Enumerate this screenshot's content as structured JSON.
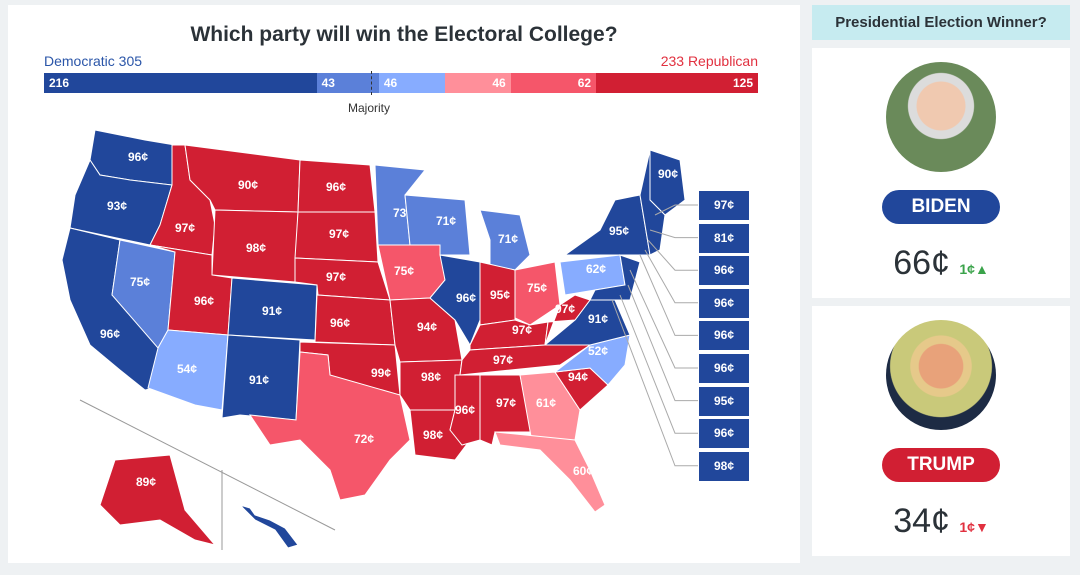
{
  "title": "Which party will win the Electoral College?",
  "dem_label": "Democratic 305",
  "rep_label": "233 Republican",
  "majority": "Majority",
  "bar": [
    {
      "v": "216",
      "n": 216,
      "c": "#21479b"
    },
    {
      "v": "43",
      "n": 43,
      "c": "#5b80d9"
    },
    {
      "v": "46",
      "n": 46,
      "c": "#87acff",
      "align": "left"
    },
    {
      "v": "46",
      "n": 46,
      "c": "#ff8f9a",
      "align": "right"
    },
    {
      "v": "62",
      "n": 62,
      "c": "#f5566a",
      "align": "right"
    },
    {
      "v": "125",
      "n": 125,
      "c": "#d11f33",
      "align": "right"
    }
  ],
  "colors": {
    "D3": "#21479b",
    "D2": "#5b80d9",
    "D1": "#87acff",
    "R1": "#ff8f9a",
    "R2": "#f5566a",
    "R3": "#d11f33"
  },
  "states": [
    {
      "s": "WA",
      "p": "96¢",
      "c": "D3"
    },
    {
      "s": "OR",
      "p": "93¢",
      "c": "D3"
    },
    {
      "s": "CA",
      "p": "96¢",
      "c": "D3"
    },
    {
      "s": "NV",
      "p": "75¢",
      "c": "D2"
    },
    {
      "s": "ID",
      "p": "97¢",
      "c": "R3"
    },
    {
      "s": "MT",
      "p": "90¢",
      "c": "R3"
    },
    {
      "s": "WY",
      "p": "98¢",
      "c": "R3"
    },
    {
      "s": "UT",
      "p": "96¢",
      "c": "R3"
    },
    {
      "s": "AZ",
      "p": "54¢",
      "c": "D1"
    },
    {
      "s": "CO",
      "p": "91¢",
      "c": "D3"
    },
    {
      "s": "NM",
      "p": "91¢",
      "c": "D3"
    },
    {
      "s": "ND",
      "p": "96¢",
      "c": "R3"
    },
    {
      "s": "SD",
      "p": "97¢",
      "c": "R3"
    },
    {
      "s": "NE",
      "p": "97¢",
      "c": "R3"
    },
    {
      "s": "KS",
      "p": "96¢",
      "c": "R3"
    },
    {
      "s": "OK",
      "p": "99¢",
      "c": "R3"
    },
    {
      "s": "TX",
      "p": "72¢",
      "c": "R2"
    },
    {
      "s": "MN",
      "p": "73¢",
      "c": "D2"
    },
    {
      "s": "IA",
      "p": "75¢",
      "c": "R2"
    },
    {
      "s": "MO",
      "p": "94¢",
      "c": "R3"
    },
    {
      "s": "AR",
      "p": "98¢",
      "c": "R3"
    },
    {
      "s": "LA",
      "p": "98¢",
      "c": "R3"
    },
    {
      "s": "WI",
      "p": "71¢",
      "c": "D2"
    },
    {
      "s": "IL",
      "p": "96¢",
      "c": "D3"
    },
    {
      "s": "MI",
      "p": "71¢",
      "c": "D2"
    },
    {
      "s": "IN",
      "p": "95¢",
      "c": "R3"
    },
    {
      "s": "OH",
      "p": "75¢",
      "c": "R2"
    },
    {
      "s": "KY",
      "p": "97¢",
      "c": "R3"
    },
    {
      "s": "TN",
      "p": "97¢",
      "c": "R3"
    },
    {
      "s": "MS",
      "p": "96¢",
      "c": "R3"
    },
    {
      "s": "AL",
      "p": "97¢",
      "c": "R3"
    },
    {
      "s": "GA",
      "p": "61¢",
      "c": "R1"
    },
    {
      "s": "FL",
      "p": "60¢",
      "c": "R1"
    },
    {
      "s": "SC",
      "p": "94¢",
      "c": "R3"
    },
    {
      "s": "NC",
      "p": "52¢",
      "c": "D1"
    },
    {
      "s": "VA",
      "p": "91¢",
      "c": "D3"
    },
    {
      "s": "WV",
      "p": "97¢",
      "c": "R3"
    },
    {
      "s": "PA",
      "p": "62¢",
      "c": "D1"
    },
    {
      "s": "NY",
      "p": "95¢",
      "c": "D3"
    },
    {
      "s": "ME",
      "p": "90¢",
      "c": "D3"
    },
    {
      "s": "AK",
      "p": "89¢",
      "c": "R3"
    },
    {
      "s": "HI",
      "p": "",
      "c": "D3"
    },
    {
      "s": "NE2",
      "p": "",
      "c": "D3"
    },
    {
      "s": "MID",
      "p": "",
      "c": "D3"
    }
  ],
  "small_states": [
    "97¢",
    "81¢",
    "96¢",
    "96¢",
    "96¢",
    "96¢",
    "95¢",
    "96¢",
    "98¢"
  ],
  "sidebar": {
    "header": "Presidential Election Winner?",
    "candidates": [
      {
        "name": "BIDEN",
        "price": "66¢",
        "change": "1¢",
        "dir": "▲",
        "color": "#21479b",
        "chg_color": "#3aa34a"
      },
      {
        "name": "TRUMP",
        "price": "34¢",
        "change": "1¢",
        "dir": "▼",
        "color": "#d11f33",
        "chg_color": "#e1303f"
      }
    ]
  }
}
